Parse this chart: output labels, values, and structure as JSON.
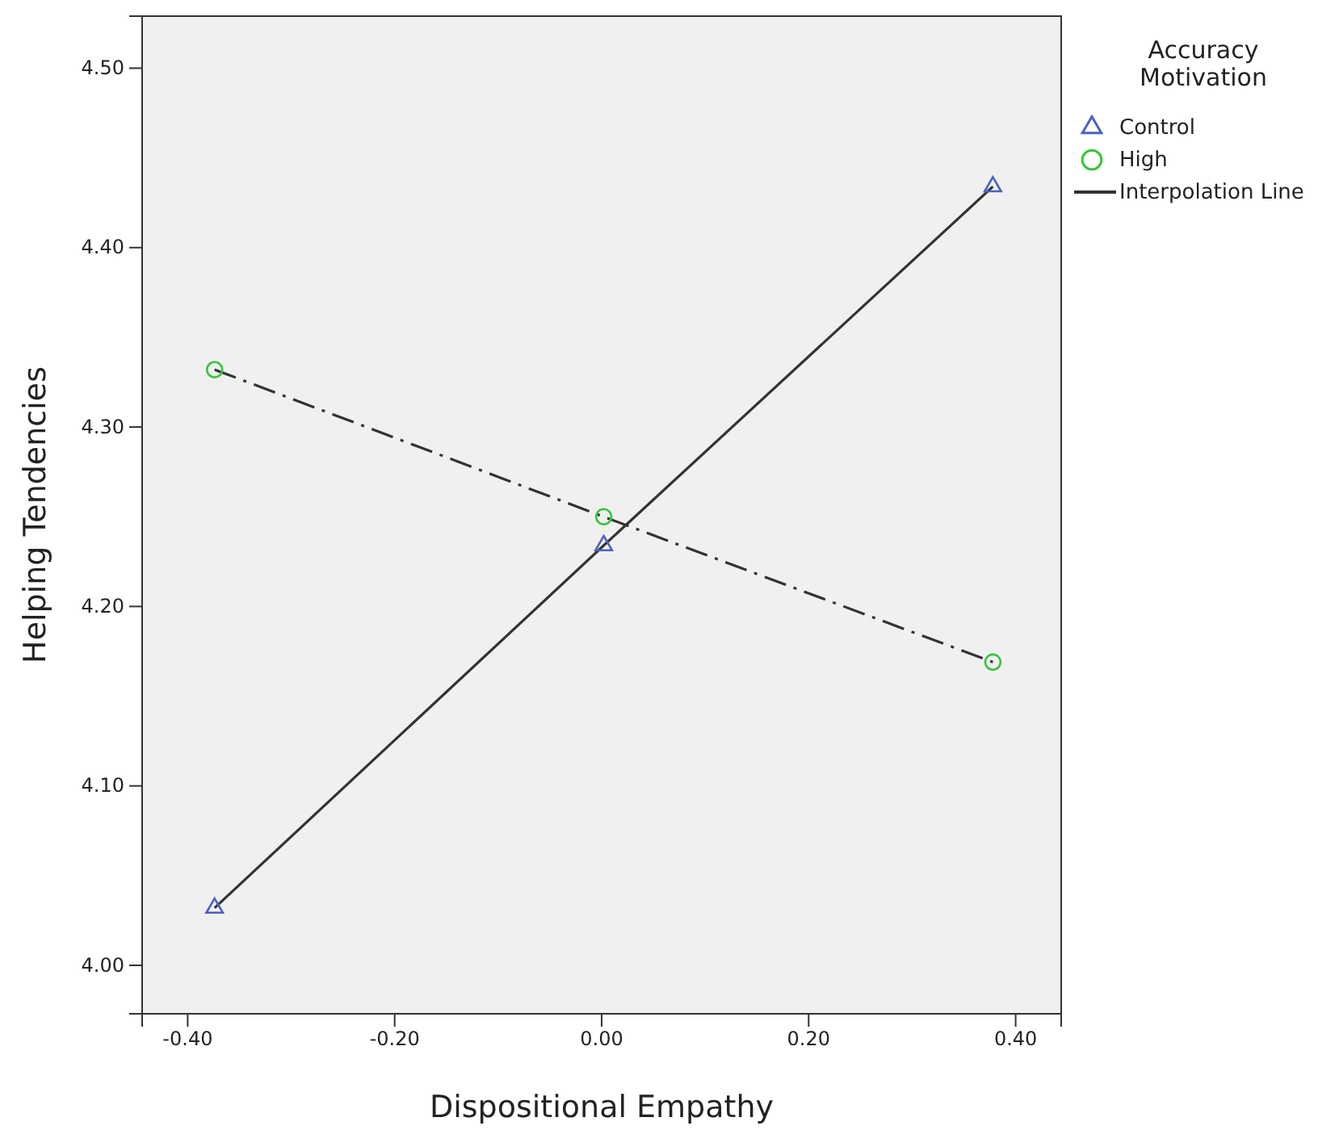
{
  "chart_data": {
    "type": "scatter",
    "xlabel": "Dispositional Empathy",
    "ylabel": "Helping Tendencies",
    "legend_title": "Accuracy Motivation",
    "legend": "top right",
    "grid": false,
    "xlim": [
      -0.444,
      0.444
    ],
    "xticks": [
      {
        "value": -0.4,
        "label": "-0.40"
      },
      {
        "value": -0.2,
        "label": "-0.20"
      },
      {
        "value": 0,
        "label": "0.00"
      },
      {
        "value": 0.2,
        "label": "0.20"
      },
      {
        "value": 0.4,
        "label": "0.40"
      }
    ],
    "ylim": [
      3.973,
      4.529
    ],
    "yticks": [
      {
        "value": 4.0,
        "label": "4.00"
      },
      {
        "value": 4.1,
        "label": "4.10"
      },
      {
        "value": 4.2,
        "label": "4.20"
      },
      {
        "value": 4.3,
        "label": "4.30"
      },
      {
        "value": 4.4,
        "label": "4.40"
      },
      {
        "value": 4.5,
        "label": "4.50"
      }
    ],
    "series": [
      {
        "name": "Interpolation Line",
        "type": "line",
        "line_style": "solid",
        "marker": "none",
        "color": "#333333",
        "x": [
          -0.374,
          0.002,
          0.378
        ],
        "values": [
          4.032,
          4.234,
          4.434
        ]
      },
      {
        "type": "line",
        "line_style": "dashed",
        "marker": "none",
        "color": "#333333",
        "x": [
          -0.374,
          0.002,
          0.378
        ],
        "values": [
          4.332,
          4.25,
          4.169
        ]
      },
      {
        "name": "Control",
        "marker": "triangle",
        "color": "#4a62c0",
        "x": [
          -0.374,
          0.002,
          0.378
        ],
        "values": [
          4.032,
          4.234,
          4.434
        ]
      },
      {
        "name": "High",
        "marker": "circle",
        "color": "#3cc43c",
        "x": [
          -0.374,
          0.002,
          0.378
        ],
        "values": [
          4.332,
          4.25,
          4.169
        ]
      }
    ]
  }
}
